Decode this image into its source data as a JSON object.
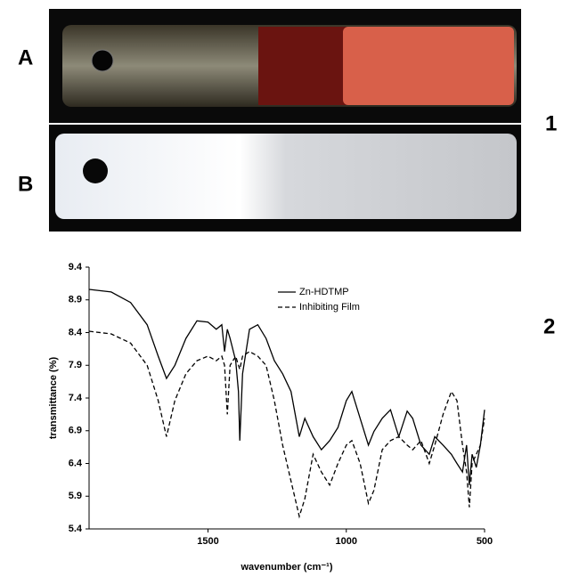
{
  "panel_labels": {
    "a": "A",
    "b": "B",
    "one": "1",
    "two": "2"
  },
  "chart_data": {
    "type": "line",
    "x_label": "wavenumber (cm⁻¹)",
    "y_label": "transmittance (%)",
    "x": [
      1930,
      1850,
      1780,
      1720,
      1680,
      1650,
      1620,
      1580,
      1540,
      1500,
      1470,
      1450,
      1440,
      1430,
      1420,
      1400,
      1390,
      1385,
      1375,
      1350,
      1320,
      1290,
      1260,
      1230,
      1200,
      1170,
      1150,
      1120,
      1090,
      1060,
      1030,
      1000,
      980,
      950,
      920,
      900,
      870,
      840,
      810,
      780,
      760,
      730,
      700,
      680,
      650,
      620,
      600,
      580,
      565,
      555,
      545,
      530,
      515,
      500
    ],
    "series": [
      {
        "name": "Zn-HDTMP",
        "color": "#000000",
        "line_style": "solid",
        "values": [
          9.06,
          9.02,
          8.86,
          8.52,
          8.04,
          7.7,
          7.9,
          8.31,
          8.58,
          8.56,
          8.45,
          8.52,
          8.11,
          8.45,
          8.31,
          7.97,
          7.5,
          6.75,
          7.77,
          8.45,
          8.52,
          8.31,
          7.97,
          7.77,
          7.5,
          6.81,
          7.09,
          6.81,
          6.61,
          6.75,
          6.95,
          7.36,
          7.5,
          7.09,
          6.68,
          6.89,
          7.09,
          7.22,
          6.81,
          7.2,
          7.09,
          6.68,
          6.54,
          6.81,
          6.68,
          6.54,
          6.4,
          6.27,
          6.68,
          6.07,
          6.54,
          6.34,
          6.68,
          7.22
        ]
      },
      {
        "name": "Inhibiting Film",
        "color": "#000000",
        "line_style": "dashed",
        "values": [
          8.42,
          8.38,
          8.24,
          7.9,
          7.36,
          6.81,
          7.36,
          7.77,
          7.97,
          8.04,
          7.97,
          8.04,
          7.9,
          7.15,
          7.9,
          8.04,
          7.9,
          7.84,
          8.04,
          8.11,
          8.04,
          7.9,
          7.36,
          6.68,
          6.13,
          5.59,
          5.86,
          6.54,
          6.27,
          6.07,
          6.4,
          6.68,
          6.75,
          6.4,
          5.79,
          5.99,
          6.61,
          6.75,
          6.81,
          6.68,
          6.61,
          6.75,
          6.4,
          6.68,
          7.15,
          7.5,
          7.36,
          6.68,
          6.27,
          5.73,
          6.4,
          6.54,
          6.68,
          7.09
        ]
      }
    ],
    "xlim": [
      1930,
      500
    ],
    "xticks": [
      1500,
      1000,
      500
    ],
    "ylim": [
      5.4,
      9.4
    ],
    "yticks": [
      5.4,
      5.9,
      6.4,
      6.9,
      7.4,
      7.9,
      8.4,
      8.9,
      9.4
    ]
  }
}
